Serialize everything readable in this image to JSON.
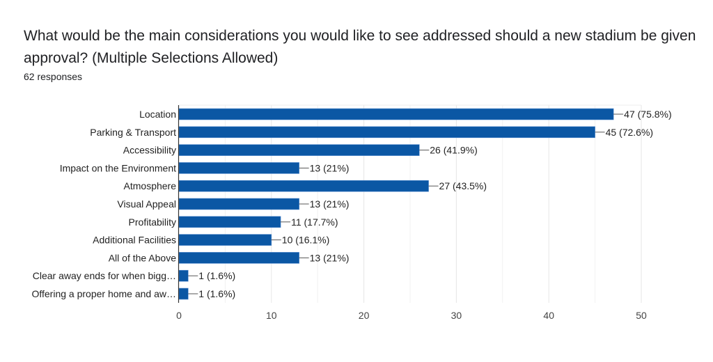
{
  "chart_data": {
    "type": "bar",
    "orientation": "horizontal",
    "title": "What would be the main considerations you would like to see addressed should a new stadium be given approval? (Multiple Selections Allowed)",
    "subtitle": "62 responses",
    "categories": [
      "Location",
      "Parking & Transport",
      "Accessibility",
      "Impact on the Environment",
      "Atmosphere",
      "Visual Appeal",
      "Profitability",
      "Additional Facilities",
      "All of the Above",
      "Clear away ends for when bigg…",
      "Offering a proper home and aw…"
    ],
    "values": [
      47,
      45,
      26,
      13,
      27,
      13,
      11,
      10,
      13,
      1,
      1
    ],
    "data_labels": [
      "47 (75.8%)",
      "45 (72.6%)",
      "26 (41.9%)",
      "13 (21%)",
      "27 (43.5%)",
      "13 (21%)",
      "11 (17.7%)",
      "10 (16.1%)",
      "13 (21%)",
      "1 (1.6%)",
      "1 (1.6%)"
    ],
    "xlim": [
      0,
      50
    ],
    "xticks": [
      "0",
      "10",
      "20",
      "30",
      "40",
      "50"
    ],
    "xlabel": "",
    "ylabel": "",
    "grid": true,
    "colors": {
      "bar": "#0b57a4",
      "bar_edge": "#5b8fd0"
    }
  }
}
